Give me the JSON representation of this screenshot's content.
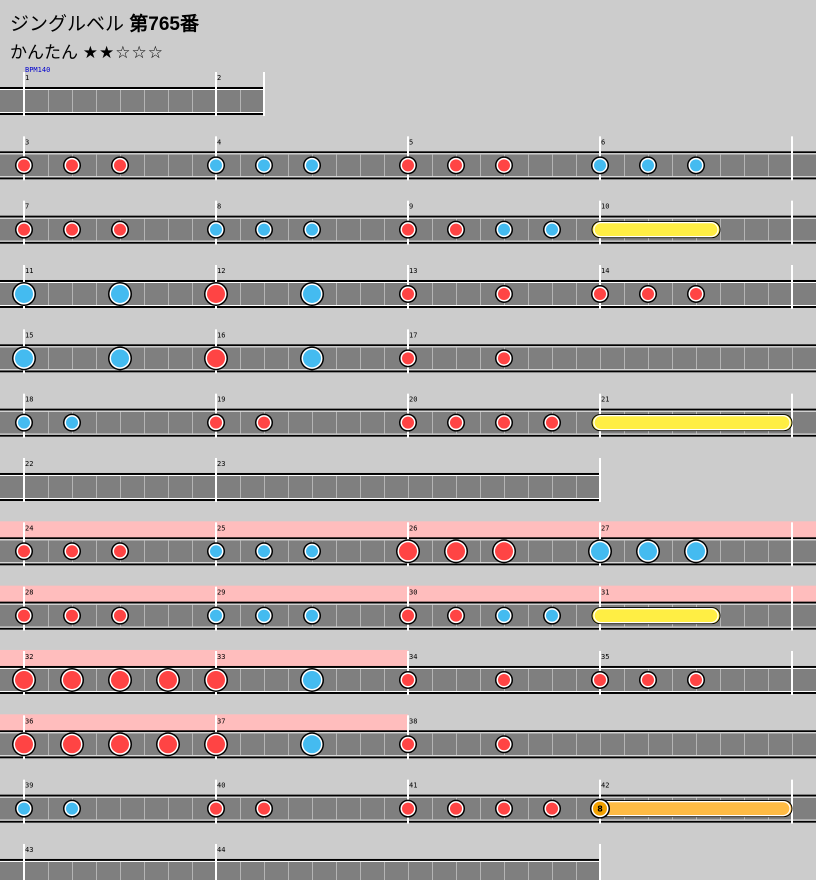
{
  "song": {
    "title": "ジングルベル",
    "number_label": "第765番",
    "difficulty_label": "かんたん",
    "stars_text": "★★☆☆☆",
    "star_rating": 2,
    "star_max": 5
  },
  "score": {
    "bpm_label": "BPM140",
    "colors": {
      "don": "#ff4444",
      "ka": "#44bbf0",
      "drumroll": "#ffee44",
      "balloon": "#ffbb44",
      "gogo": "#ffbdbd",
      "lane": "#7f7f7f",
      "background": "#cccccc"
    },
    "lines": [
      {
        "measures": [
          {
            "n": 1,
            "gogo": false,
            "notes": []
          },
          {
            "n": 2,
            "gogo": false,
            "notes": []
          }
        ],
        "end_quarters": 2.5
      },
      {
        "measures": [
          {
            "n": 3,
            "gogo": false,
            "notes": [
              "d",
              0,
              "d",
              0.5,
              "d",
              1
            ]
          },
          {
            "n": 4,
            "gogo": false,
            "notes": [
              "k",
              0,
              "k",
              0.5,
              "k",
              1
            ]
          },
          {
            "n": 5,
            "gogo": false,
            "notes": [
              "d",
              0,
              "d",
              0.5,
              "d",
              1
            ]
          },
          {
            "n": 6,
            "gogo": false,
            "notes": [
              "k",
              0,
              "k",
              0.5,
              "k",
              1
            ]
          }
        ]
      },
      {
        "measures": [
          {
            "n": 7,
            "gogo": false,
            "notes": [
              "d",
              0,
              "d",
              0.5,
              "d",
              1
            ]
          },
          {
            "n": 8,
            "gogo": false,
            "notes": [
              "k",
              0,
              "k",
              0.5,
              "k",
              1
            ]
          },
          {
            "n": 9,
            "gogo": false,
            "notes": [
              "d",
              0,
              "d",
              0.5,
              "k",
              1,
              "k",
              1.5
            ]
          },
          {
            "n": 10,
            "gogo": false,
            "notes": [],
            "roll": [
              0,
              1.25
            ]
          }
        ]
      },
      {
        "measures": [
          {
            "n": 11,
            "gogo": false,
            "notes": [
              "K",
              0,
              "K",
              1
            ]
          },
          {
            "n": 12,
            "gogo": false,
            "notes": [
              "D",
              0,
              "K",
              1
            ]
          },
          {
            "n": 13,
            "gogo": false,
            "notes": [
              "d",
              0,
              "d",
              1
            ]
          },
          {
            "n": 14,
            "gogo": false,
            "notes": [
              "d",
              0,
              "d",
              0.5,
              "d",
              1
            ]
          }
        ]
      },
      {
        "measures": [
          {
            "n": 15,
            "gogo": false,
            "notes": [
              "K",
              0,
              "K",
              1
            ]
          },
          {
            "n": 16,
            "gogo": false,
            "notes": [
              "D",
              0,
              "K",
              1
            ]
          },
          {
            "n": 17,
            "gogo": false,
            "notes": [
              "d",
              0,
              "d",
              1
            ]
          }
        ],
        "end_quarters": 10
      },
      {
        "measures": [
          {
            "n": 18,
            "gogo": false,
            "notes": [
              "k",
              0,
              "k",
              0.5
            ]
          },
          {
            "n": 19,
            "gogo": false,
            "notes": [
              "d",
              0,
              "d",
              0.5
            ]
          },
          {
            "n": 20,
            "gogo": false,
            "notes": [
              "d",
              0,
              "d",
              0.5,
              "d",
              1,
              "d",
              1.5
            ]
          },
          {
            "n": 21,
            "gogo": false,
            "notes": [],
            "roll": [
              0,
              2
            ]
          }
        ]
      },
      {
        "measures": [
          {
            "n": 22,
            "gogo": false,
            "notes": []
          },
          {
            "n": 23,
            "gogo": false,
            "notes": []
          }
        ],
        "end_quarters": 6
      },
      {
        "measures": [
          {
            "n": 24,
            "gogo": true,
            "notes": [
              "d",
              0,
              "d",
              0.5,
              "d",
              1
            ]
          },
          {
            "n": 25,
            "gogo": true,
            "notes": [
              "k",
              0,
              "k",
              0.5,
              "k",
              1
            ]
          },
          {
            "n": 26,
            "gogo": true,
            "notes": [
              "D",
              0,
              "D",
              0.5,
              "D",
              1
            ]
          },
          {
            "n": 27,
            "gogo": true,
            "notes": [
              "K",
              0,
              "K",
              0.5,
              "K",
              1
            ]
          }
        ]
      },
      {
        "measures": [
          {
            "n": 28,
            "gogo": true,
            "notes": [
              "d",
              0,
              "d",
              0.5,
              "d",
              1
            ]
          },
          {
            "n": 29,
            "gogo": true,
            "notes": [
              "k",
              0,
              "k",
              0.5,
              "k",
              1
            ]
          },
          {
            "n": 30,
            "gogo": true,
            "notes": [
              "d",
              0,
              "d",
              0.5,
              "k",
              1,
              "k",
              1.5
            ]
          },
          {
            "n": 31,
            "gogo": true,
            "notes": [],
            "roll": [
              0,
              1.25
            ]
          }
        ]
      },
      {
        "measures": [
          {
            "n": 32,
            "gogo": true,
            "notes": [
              "D",
              0,
              "D",
              0.5,
              "D",
              1,
              "D",
              1.5
            ]
          },
          {
            "n": 33,
            "gogo": true,
            "notes": [
              "D",
              0,
              "K",
              1
            ]
          },
          {
            "n": 34,
            "gogo": false,
            "notes": [
              "d",
              0,
              "d",
              1
            ]
          },
          {
            "n": 35,
            "gogo": false,
            "notes": [
              "d",
              0,
              "d",
              0.5,
              "d",
              1
            ]
          }
        ]
      },
      {
        "measures": [
          {
            "n": 36,
            "gogo": true,
            "notes": [
              "D",
              0,
              "D",
              0.5,
              "D",
              1,
              "D",
              1.5
            ]
          },
          {
            "n": 37,
            "gogo": true,
            "notes": [
              "D",
              0,
              "K",
              1
            ]
          },
          {
            "n": 38,
            "gogo": false,
            "notes": [
              "d",
              0,
              "d",
              1
            ]
          }
        ],
        "end_quarters": 10
      },
      {
        "measures": [
          {
            "n": 39,
            "gogo": false,
            "notes": [
              "k",
              0,
              "k",
              0.5
            ]
          },
          {
            "n": 40,
            "gogo": false,
            "notes": [
              "d",
              0,
              "d",
              0.5
            ]
          },
          {
            "n": 41,
            "gogo": false,
            "notes": [
              "d",
              0,
              "d",
              0.5,
              "d",
              1,
              "d",
              1.5
            ]
          },
          {
            "n": 42,
            "gogo": false,
            "notes": [],
            "balloon": [
              0,
              2,
              "8"
            ]
          }
        ]
      },
      {
        "measures": [
          {
            "n": 43,
            "gogo": false,
            "notes": []
          },
          {
            "n": 44,
            "gogo": false,
            "notes": []
          }
        ],
        "end_quarters": 6
      }
    ]
  }
}
